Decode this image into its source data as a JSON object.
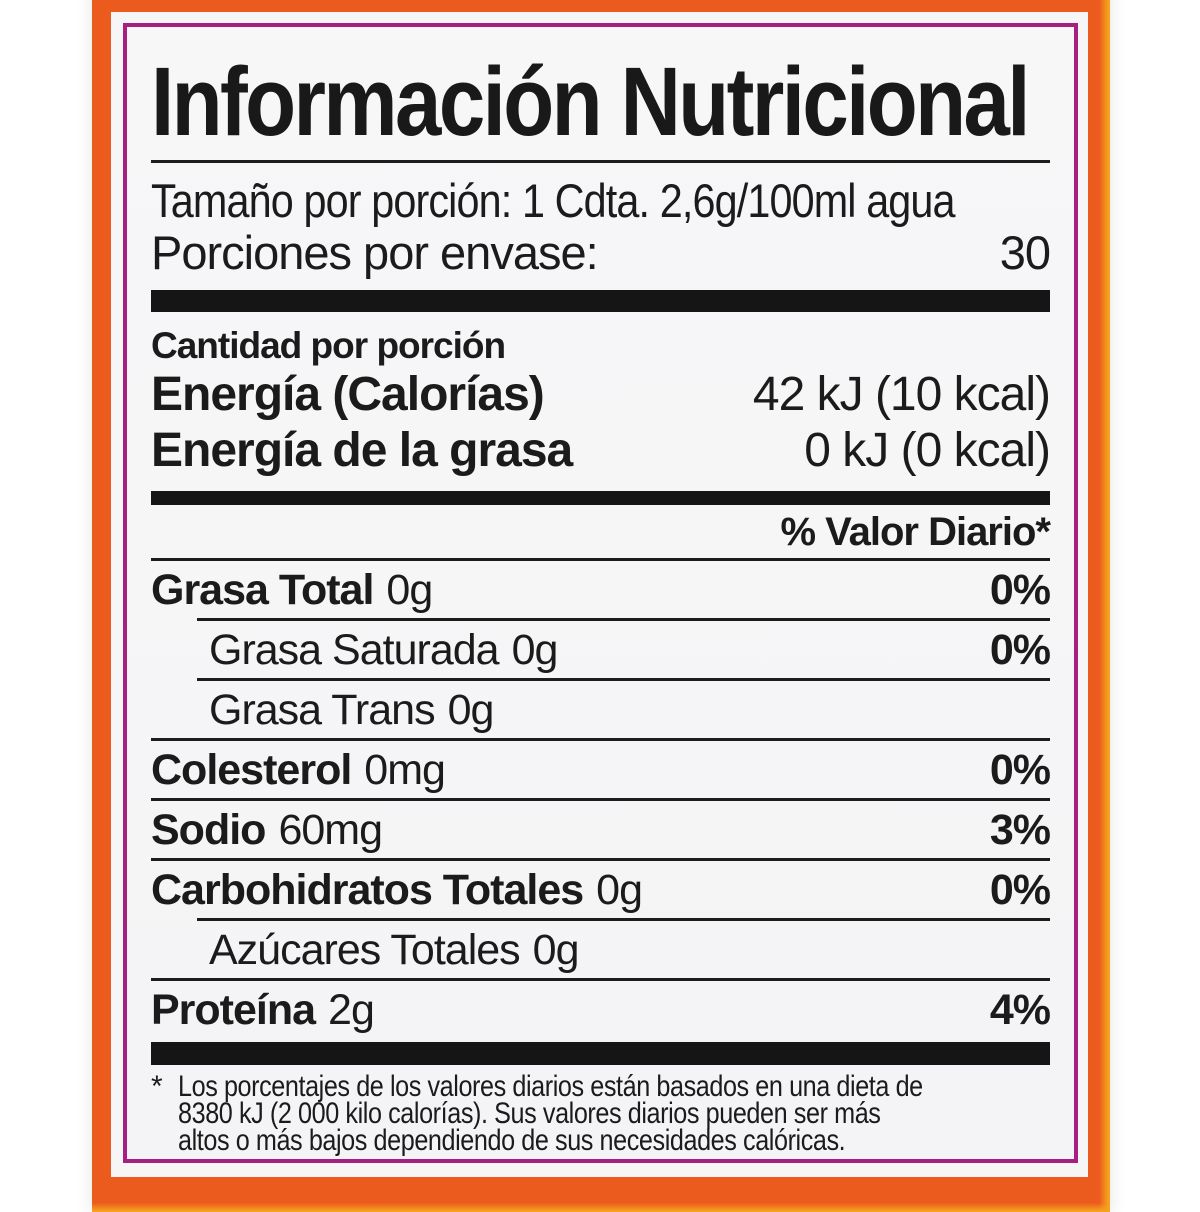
{
  "label": {
    "title": "Información Nutricional",
    "serving": {
      "size_line": "Tamaño por porción: 1 Cdta. 2,6g/100ml agua",
      "per_container_label": "Porciones por envase:",
      "per_container_value": "30"
    },
    "amount_per_serving": "Cantidad por porción",
    "energy_rows": [
      {
        "label": "Energía (Calorías)",
        "value": "42 kJ (10 kcal)"
      },
      {
        "label": "Energía de la grasa",
        "value": "0 kJ (0 kcal)"
      }
    ],
    "daily_value_header": "% Valor Diario*",
    "nutrient_rows": [
      {
        "label": "Grasa Total",
        "amount": "0g",
        "dv": "0%"
      },
      {
        "label": "Grasa Saturada",
        "amount": "0g",
        "dv": "0%"
      },
      {
        "label": "Grasa Trans",
        "amount": "0g",
        "dv": ""
      },
      {
        "label": "Colesterol",
        "amount": "0mg",
        "dv": "0%"
      },
      {
        "label": "Sodio",
        "amount": "60mg",
        "dv": "3%"
      },
      {
        "label": "Carbohidratos Totales",
        "amount": "0g",
        "dv": "0%"
      },
      {
        "label": "Azúcares Totales",
        "amount": "0g",
        "dv": ""
      },
      {
        "label": "Proteína",
        "amount": "2g",
        "dv": "4%"
      }
    ],
    "footnote": {
      "marker": "*",
      "text": "Los porcentajes de los valores diarios están basados en una dieta de\n8380 kJ (2 000 kilo calorías). Sus valores diarios pueden ser más\naltos o más bajos dependiendo de sus necesidades calóricas."
    },
    "colors": {
      "border_orange": "#EC5B1E",
      "border_orange_outer": "#F4A31E",
      "border_magenta": "#A81F82",
      "panel_background": "#F6F6F7",
      "text": "#1B1B1B"
    }
  }
}
